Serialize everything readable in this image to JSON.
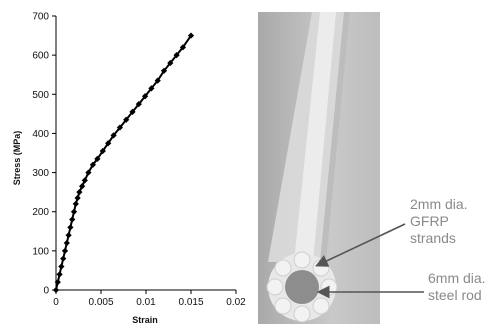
{
  "chart_data": {
    "type": "line",
    "title": "",
    "xlabel": "Strain",
    "ylabel": "Stress (MPa)",
    "xlim": [
      0,
      0.02
    ],
    "ylim": [
      0,
      700
    ],
    "xticks": [
      "0",
      "0.005",
      "0.01",
      "0.015",
      "0.02"
    ],
    "yticks": [
      "0",
      "100",
      "200",
      "300",
      "400",
      "500",
      "600",
      "700"
    ],
    "grid": false,
    "series": [
      {
        "x": [
          0,
          0.0002,
          0.0004,
          0.0006,
          0.0008,
          0.001,
          0.0012,
          0.0014,
          0.0016,
          0.0018,
          0.002,
          0.0022,
          0.0024,
          0.0026,
          0.0029,
          0.0032,
          0.0036,
          0.0041,
          0.0046,
          0.0052,
          0.0058,
          0.0064,
          0.0071,
          0.0078,
          0.0085,
          0.0092,
          0.0099,
          0.0106,
          0.0113,
          0.012,
          0.0127,
          0.0134,
          0.0141,
          0.015
        ],
        "y": [
          0,
          20,
          40,
          60,
          80,
          100,
          120,
          140,
          160,
          180,
          200,
          220,
          235,
          250,
          265,
          280,
          300,
          320,
          335,
          355,
          375,
          395,
          415,
          435,
          455,
          475,
          495,
          515,
          535,
          560,
          580,
          600,
          620,
          650
        ]
      }
    ]
  },
  "photo": {
    "annotations": [
      {
        "lines": [
          "2mm dia.",
          "GFRP",
          "strands"
        ]
      },
      {
        "lines": [
          "6mm dia.",
          "steel rod"
        ]
      }
    ],
    "colors": {
      "label": "#8a8a8a",
      "pointer": "#555555"
    }
  }
}
